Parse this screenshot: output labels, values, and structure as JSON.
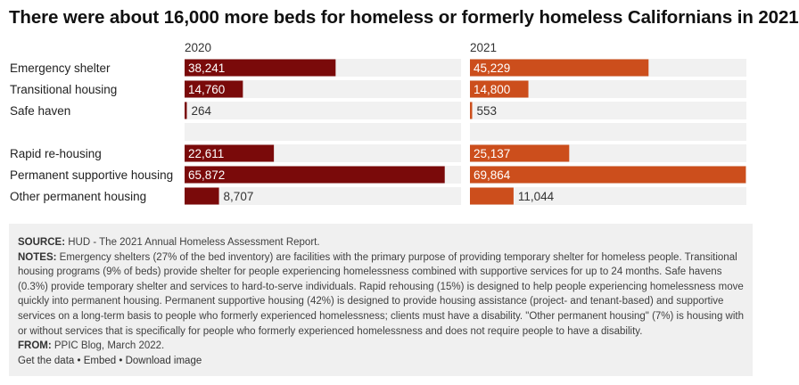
{
  "title": "There were about 16,000 more beds for homeless or formerly homeless Californians in 2021",
  "chart_data": [
    {
      "type": "bar",
      "title": "2020",
      "categories": [
        "Emergency shelter",
        "Transitional housing",
        "Safe haven",
        "",
        "Rapid re-housing",
        "Permanent supportive housing",
        "Other permanent housing"
      ],
      "values": [
        38241,
        14760,
        264,
        null,
        22611,
        65872,
        8707
      ],
      "value_labels": [
        "38,241",
        "14,760",
        "264",
        "",
        "22,611",
        "65,872",
        "8,707"
      ],
      "xlim": [
        0,
        70000
      ],
      "color": "#7a0a0a"
    },
    {
      "type": "bar",
      "title": "2021",
      "categories": [
        "Emergency shelter",
        "Transitional housing",
        "Safe haven",
        "",
        "Rapid re-housing",
        "Permanent supportive housing",
        "Other permanent housing"
      ],
      "values": [
        45229,
        14800,
        553,
        null,
        25137,
        69864,
        11044
      ],
      "value_labels": [
        "45,229",
        "14,800",
        "553",
        "",
        "25,137",
        "69,864",
        "11,044"
      ],
      "xlim": [
        0,
        70000
      ],
      "color": "#cc4e1c"
    }
  ],
  "footer": {
    "source_label": "SOURCE:",
    "source_text": " HUD - The 2021 Annual Homeless Assessment Report.",
    "notes_label": "NOTES:",
    "notes_text": " Emergency shelters (27% of the bed inventory) are facilities with the primary purpose of providing temporary shelter for homeless people. Transitional housing programs (9% of beds) provide shelter for people experiencing homelessness combined with supportive services for up to 24 months. Safe havens (0.3%) provide temporary shelter and services to hard-to-serve individuals. Rapid rehousing (15%) is designed to help people experiencing homelessness move quickly into permanent housing. Permanent supportive housing (42%) is designed to provide housing assistance (project- and tenant-based) and supportive services on a long-term basis to people who formerly experienced homelessness; clients must have a disability. \"Other permanent housing\" (7%) is housing with or without services that is specifically for people who formerly experienced homelessness and does not require people to have a disability.",
    "from_label": "FROM:",
    "from_text": " PPIC Blog, March 2022.",
    "links": {
      "get_data": "Get the data",
      "sep": " • ",
      "embed": "Embed",
      "download": "Download image"
    }
  }
}
